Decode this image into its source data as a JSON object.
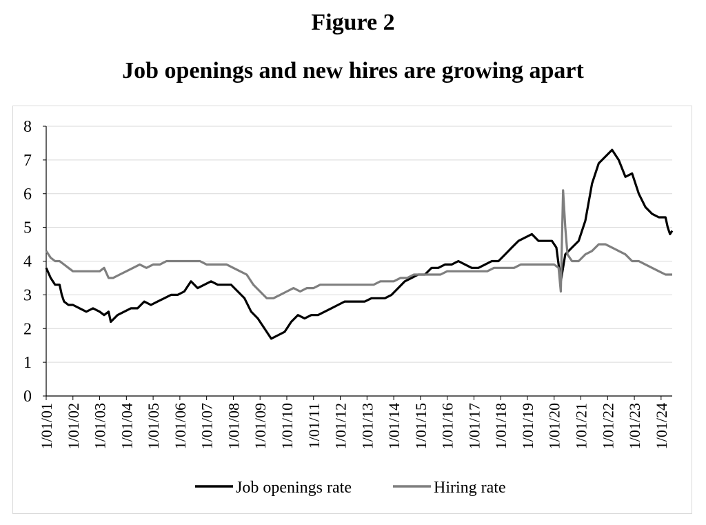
{
  "figure": {
    "label": "Figure 2",
    "title": "Job openings and new hires are growing apart"
  },
  "chart_data": {
    "type": "line",
    "title": "Job openings and new hires are growing apart",
    "xlabel": "",
    "ylabel": "",
    "ylim": [
      0,
      8
    ],
    "yticks": [
      0,
      1,
      2,
      3,
      4,
      5,
      6,
      7,
      8
    ],
    "xlim": [
      "2001-01",
      "2024-06"
    ],
    "xtick_labels": [
      "1/01/01",
      "1/01/02",
      "1/01/03",
      "1/01/04",
      "1/01/05",
      "1/01/06",
      "1/01/07",
      "1/01/08",
      "1/01/09",
      "1/01/10",
      "1/01/11",
      "1/01/12",
      "1/01/13",
      "1/01/14",
      "1/01/15",
      "1/01/16",
      "1/01/17",
      "1/01/18",
      "1/01/19",
      "1/01/20",
      "1/01/21",
      "1/01/22",
      "1/01/23",
      "1/01/24"
    ],
    "grid": "horizontal",
    "legend_position": "bottom",
    "series": [
      {
        "name": "Job openings rate",
        "color": "#000000",
        "points": [
          [
            "2001-01",
            3.8
          ],
          [
            "2001-03",
            3.5
          ],
          [
            "2001-05",
            3.3
          ],
          [
            "2001-07",
            3.3
          ],
          [
            "2001-08",
            3.0
          ],
          [
            "2001-09",
            2.8
          ],
          [
            "2001-11",
            2.7
          ],
          [
            "2002-01",
            2.7
          ],
          [
            "2002-04",
            2.6
          ],
          [
            "2002-07",
            2.5
          ],
          [
            "2002-10",
            2.6
          ],
          [
            "2003-01",
            2.5
          ],
          [
            "2003-03",
            2.4
          ],
          [
            "2003-05",
            2.5
          ],
          [
            "2003-06",
            2.2
          ],
          [
            "2003-09",
            2.4
          ],
          [
            "2003-12",
            2.5
          ],
          [
            "2004-03",
            2.6
          ],
          [
            "2004-06",
            2.6
          ],
          [
            "2004-09",
            2.8
          ],
          [
            "2004-12",
            2.7
          ],
          [
            "2005-03",
            2.8
          ],
          [
            "2005-06",
            2.9
          ],
          [
            "2005-09",
            3.0
          ],
          [
            "2005-12",
            3.0
          ],
          [
            "2006-03",
            3.1
          ],
          [
            "2006-06",
            3.4
          ],
          [
            "2006-09",
            3.2
          ],
          [
            "2006-12",
            3.3
          ],
          [
            "2007-03",
            3.4
          ],
          [
            "2007-06",
            3.3
          ],
          [
            "2007-09",
            3.3
          ],
          [
            "2007-12",
            3.3
          ],
          [
            "2008-03",
            3.1
          ],
          [
            "2008-06",
            2.9
          ],
          [
            "2008-09",
            2.5
          ],
          [
            "2008-12",
            2.3
          ],
          [
            "2009-03",
            2.0
          ],
          [
            "2009-06",
            1.7
          ],
          [
            "2009-09",
            1.8
          ],
          [
            "2009-12",
            1.9
          ],
          [
            "2010-03",
            2.2
          ],
          [
            "2010-06",
            2.4
          ],
          [
            "2010-09",
            2.3
          ],
          [
            "2010-12",
            2.4
          ],
          [
            "2011-03",
            2.4
          ],
          [
            "2011-06",
            2.5
          ],
          [
            "2011-09",
            2.6
          ],
          [
            "2011-12",
            2.7
          ],
          [
            "2012-03",
            2.8
          ],
          [
            "2012-06",
            2.8
          ],
          [
            "2012-09",
            2.8
          ],
          [
            "2012-12",
            2.8
          ],
          [
            "2013-03",
            2.9
          ],
          [
            "2013-06",
            2.9
          ],
          [
            "2013-09",
            2.9
          ],
          [
            "2013-12",
            3.0
          ],
          [
            "2014-03",
            3.2
          ],
          [
            "2014-06",
            3.4
          ],
          [
            "2014-09",
            3.5
          ],
          [
            "2014-12",
            3.6
          ],
          [
            "2015-03",
            3.6
          ],
          [
            "2015-06",
            3.8
          ],
          [
            "2015-09",
            3.8
          ],
          [
            "2015-12",
            3.9
          ],
          [
            "2016-03",
            3.9
          ],
          [
            "2016-06",
            4.0
          ],
          [
            "2016-09",
            3.9
          ],
          [
            "2016-12",
            3.8
          ],
          [
            "2017-03",
            3.8
          ],
          [
            "2017-06",
            3.9
          ],
          [
            "2017-09",
            4.0
          ],
          [
            "2017-12",
            4.0
          ],
          [
            "2018-03",
            4.2
          ],
          [
            "2018-06",
            4.4
          ],
          [
            "2018-09",
            4.6
          ],
          [
            "2018-12",
            4.7
          ],
          [
            "2019-03",
            4.8
          ],
          [
            "2019-06",
            4.6
          ],
          [
            "2019-09",
            4.6
          ],
          [
            "2019-12",
            4.6
          ],
          [
            "2020-02",
            4.4
          ],
          [
            "2020-04",
            3.4
          ],
          [
            "2020-06",
            4.2
          ],
          [
            "2020-09",
            4.4
          ],
          [
            "2020-12",
            4.6
          ],
          [
            "2021-03",
            5.2
          ],
          [
            "2021-06",
            6.3
          ],
          [
            "2021-09",
            6.9
          ],
          [
            "2021-12",
            7.1
          ],
          [
            "2022-03",
            7.3
          ],
          [
            "2022-06",
            7.0
          ],
          [
            "2022-09",
            6.5
          ],
          [
            "2022-12",
            6.6
          ],
          [
            "2023-03",
            6.0
          ],
          [
            "2023-06",
            5.6
          ],
          [
            "2023-09",
            5.4
          ],
          [
            "2023-12",
            5.3
          ],
          [
            "2024-03",
            5.3
          ],
          [
            "2024-04",
            5.0
          ],
          [
            "2024-05",
            4.8
          ],
          [
            "2024-06",
            4.9
          ]
        ]
      },
      {
        "name": "Hiring rate",
        "color": "#7f7f7f",
        "points": [
          [
            "2001-01",
            4.3
          ],
          [
            "2001-03",
            4.1
          ],
          [
            "2001-05",
            4.0
          ],
          [
            "2001-07",
            4.0
          ],
          [
            "2001-09",
            3.9
          ],
          [
            "2001-11",
            3.8
          ],
          [
            "2002-01",
            3.7
          ],
          [
            "2002-04",
            3.7
          ],
          [
            "2002-07",
            3.7
          ],
          [
            "2002-10",
            3.7
          ],
          [
            "2003-01",
            3.7
          ],
          [
            "2003-03",
            3.8
          ],
          [
            "2003-05",
            3.5
          ],
          [
            "2003-07",
            3.5
          ],
          [
            "2003-10",
            3.6
          ],
          [
            "2004-01",
            3.7
          ],
          [
            "2004-04",
            3.8
          ],
          [
            "2004-07",
            3.9
          ],
          [
            "2004-10",
            3.8
          ],
          [
            "2005-01",
            3.9
          ],
          [
            "2005-04",
            3.9
          ],
          [
            "2005-07",
            4.0
          ],
          [
            "2005-10",
            4.0
          ],
          [
            "2006-01",
            4.0
          ],
          [
            "2006-04",
            4.0
          ],
          [
            "2006-07",
            4.0
          ],
          [
            "2006-10",
            4.0
          ],
          [
            "2007-01",
            3.9
          ],
          [
            "2007-04",
            3.9
          ],
          [
            "2007-07",
            3.9
          ],
          [
            "2007-10",
            3.9
          ],
          [
            "2008-01",
            3.8
          ],
          [
            "2008-04",
            3.7
          ],
          [
            "2008-07",
            3.6
          ],
          [
            "2008-10",
            3.3
          ],
          [
            "2009-01",
            3.1
          ],
          [
            "2009-04",
            2.9
          ],
          [
            "2009-07",
            2.9
          ],
          [
            "2009-10",
            3.0
          ],
          [
            "2010-01",
            3.1
          ],
          [
            "2010-04",
            3.2
          ],
          [
            "2010-07",
            3.1
          ],
          [
            "2010-10",
            3.2
          ],
          [
            "2011-01",
            3.2
          ],
          [
            "2011-04",
            3.3
          ],
          [
            "2011-07",
            3.3
          ],
          [
            "2011-10",
            3.3
          ],
          [
            "2012-01",
            3.3
          ],
          [
            "2012-04",
            3.3
          ],
          [
            "2012-07",
            3.3
          ],
          [
            "2012-10",
            3.3
          ],
          [
            "2013-01",
            3.3
          ],
          [
            "2013-04",
            3.3
          ],
          [
            "2013-07",
            3.4
          ],
          [
            "2013-10",
            3.4
          ],
          [
            "2014-01",
            3.4
          ],
          [
            "2014-04",
            3.5
          ],
          [
            "2014-07",
            3.5
          ],
          [
            "2014-10",
            3.6
          ],
          [
            "2015-01",
            3.6
          ],
          [
            "2015-04",
            3.6
          ],
          [
            "2015-07",
            3.6
          ],
          [
            "2015-10",
            3.6
          ],
          [
            "2016-01",
            3.7
          ],
          [
            "2016-04",
            3.7
          ],
          [
            "2016-07",
            3.7
          ],
          [
            "2016-10",
            3.7
          ],
          [
            "2017-01",
            3.7
          ],
          [
            "2017-04",
            3.7
          ],
          [
            "2017-07",
            3.7
          ],
          [
            "2017-10",
            3.8
          ],
          [
            "2018-01",
            3.8
          ],
          [
            "2018-04",
            3.8
          ],
          [
            "2018-07",
            3.8
          ],
          [
            "2018-10",
            3.9
          ],
          [
            "2019-01",
            3.9
          ],
          [
            "2019-04",
            3.9
          ],
          [
            "2019-07",
            3.9
          ],
          [
            "2019-10",
            3.9
          ],
          [
            "2020-01",
            3.9
          ],
          [
            "2020-03",
            3.8
          ],
          [
            "2020-04",
            3.1
          ],
          [
            "2020-05",
            6.1
          ],
          [
            "2020-06",
            5.0
          ],
          [
            "2020-07",
            4.2
          ],
          [
            "2020-09",
            4.0
          ],
          [
            "2020-12",
            4.0
          ],
          [
            "2021-03",
            4.2
          ],
          [
            "2021-06",
            4.3
          ],
          [
            "2021-09",
            4.5
          ],
          [
            "2021-12",
            4.5
          ],
          [
            "2022-03",
            4.4
          ],
          [
            "2022-06",
            4.3
          ],
          [
            "2022-09",
            4.2
          ],
          [
            "2022-12",
            4.0
          ],
          [
            "2023-03",
            4.0
          ],
          [
            "2023-06",
            3.9
          ],
          [
            "2023-09",
            3.8
          ],
          [
            "2023-12",
            3.7
          ],
          [
            "2024-03",
            3.6
          ],
          [
            "2024-06",
            3.6
          ]
        ]
      }
    ]
  }
}
